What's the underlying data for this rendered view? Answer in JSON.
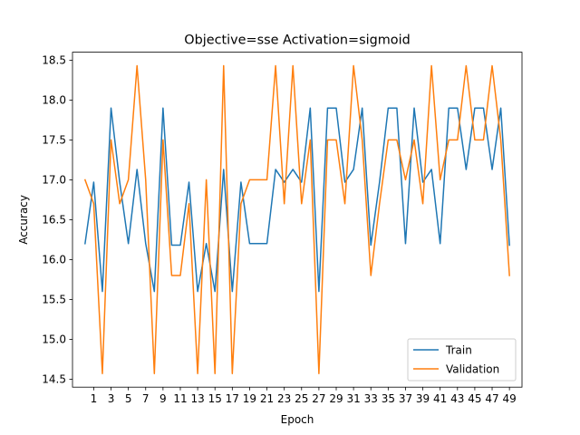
{
  "chart_data": {
    "type": "line",
    "title": "Objective=sse Activation=sigmoid",
    "xlabel": "Epoch",
    "ylabel": "Accuracy",
    "xlim": [
      -1.45,
      50.45
    ],
    "ylim": [
      14.4,
      18.6
    ],
    "x": [
      0,
      1,
      2,
      3,
      4,
      5,
      6,
      7,
      8,
      9,
      10,
      11,
      12,
      13,
      14,
      15,
      16,
      17,
      18,
      19,
      20,
      21,
      22,
      23,
      24,
      25,
      26,
      27,
      28,
      29,
      30,
      31,
      32,
      33,
      34,
      35,
      36,
      37,
      38,
      39,
      40,
      41,
      42,
      43,
      44,
      45,
      46,
      47,
      48,
      49
    ],
    "xticks": [
      1,
      3,
      5,
      7,
      9,
      11,
      13,
      15,
      17,
      19,
      21,
      23,
      25,
      27,
      29,
      31,
      33,
      35,
      37,
      39,
      41,
      43,
      45,
      47,
      49
    ],
    "yticks": [
      "14.5",
      "15.0",
      "15.5",
      "16.0",
      "16.5",
      "17.0",
      "17.5",
      "18.0",
      "18.5"
    ],
    "series": [
      {
        "name": "Train",
        "color": "#1f77b4",
        "values": [
          16.2,
          16.97,
          15.6,
          17.9,
          16.97,
          16.2,
          17.13,
          16.2,
          15.6,
          17.9,
          16.18,
          16.18,
          16.97,
          15.6,
          16.2,
          15.6,
          17.13,
          15.6,
          16.97,
          16.2,
          16.2,
          16.2,
          17.13,
          16.97,
          17.13,
          16.97,
          17.9,
          15.6,
          17.9,
          17.9,
          16.97,
          17.13,
          17.9,
          16.18,
          16.97,
          17.9,
          17.9,
          16.2,
          17.9,
          16.97,
          17.13,
          16.2,
          17.9,
          17.9,
          17.13,
          17.9,
          17.9,
          17.13,
          17.9,
          16.18
        ]
      },
      {
        "name": "Validation",
        "color": "#ff7f0e",
        "values": [
          17.0,
          16.7,
          14.57,
          17.5,
          16.7,
          17.0,
          18.43,
          17.0,
          14.57,
          17.5,
          15.8,
          15.8,
          16.7,
          14.57,
          17.0,
          14.57,
          18.43,
          14.57,
          16.7,
          17.0,
          17.0,
          17.0,
          18.43,
          16.7,
          18.43,
          16.7,
          17.5,
          14.57,
          17.5,
          17.5,
          16.7,
          18.43,
          17.5,
          15.8,
          16.7,
          17.5,
          17.5,
          17.0,
          17.5,
          16.7,
          18.43,
          17.0,
          17.5,
          17.5,
          18.43,
          17.5,
          17.5,
          18.43,
          17.5,
          15.8
        ]
      }
    ],
    "legend_position": "lower-right",
    "grid": false
  }
}
